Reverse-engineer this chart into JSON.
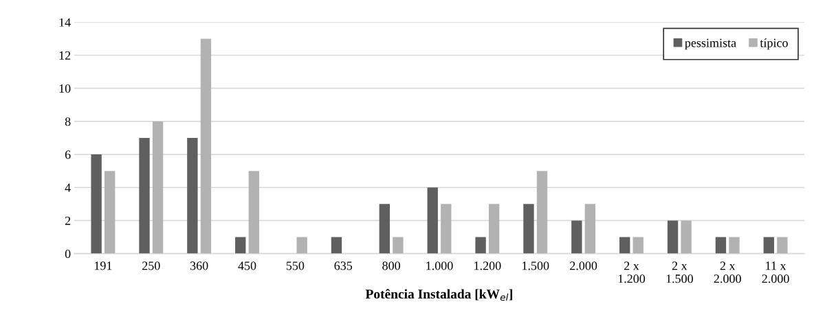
{
  "chart_data": {
    "type": "bar",
    "xlabel": "Potência Instalada [kW$_{el}$]",
    "categories": [
      "191",
      "250",
      "360",
      "450",
      "550",
      "635",
      "800",
      "1.000",
      "1.200",
      "1.500",
      "2.000",
      "2 x\n1.200",
      "2 x\n1.500",
      "2 x\n2.000",
      "11 x\n2.000"
    ],
    "series": [
      {
        "name": "pessimista",
        "color": "#5f5f5f",
        "values": [
          6,
          7,
          7,
          1,
          0,
          1,
          3,
          4,
          1,
          3,
          2,
          1,
          2,
          1,
          1
        ]
      },
      {
        "name": "típico",
        "color": "#b2b2b2",
        "values": [
          5,
          8,
          13,
          5,
          1,
          0,
          1,
          3,
          3,
          5,
          3,
          1,
          2,
          1,
          1
        ]
      }
    ],
    "ylim": [
      0,
      14
    ],
    "yticks": [
      0,
      2,
      4,
      6,
      8,
      10,
      12,
      14
    ],
    "grid": "y",
    "legend": "top right"
  }
}
